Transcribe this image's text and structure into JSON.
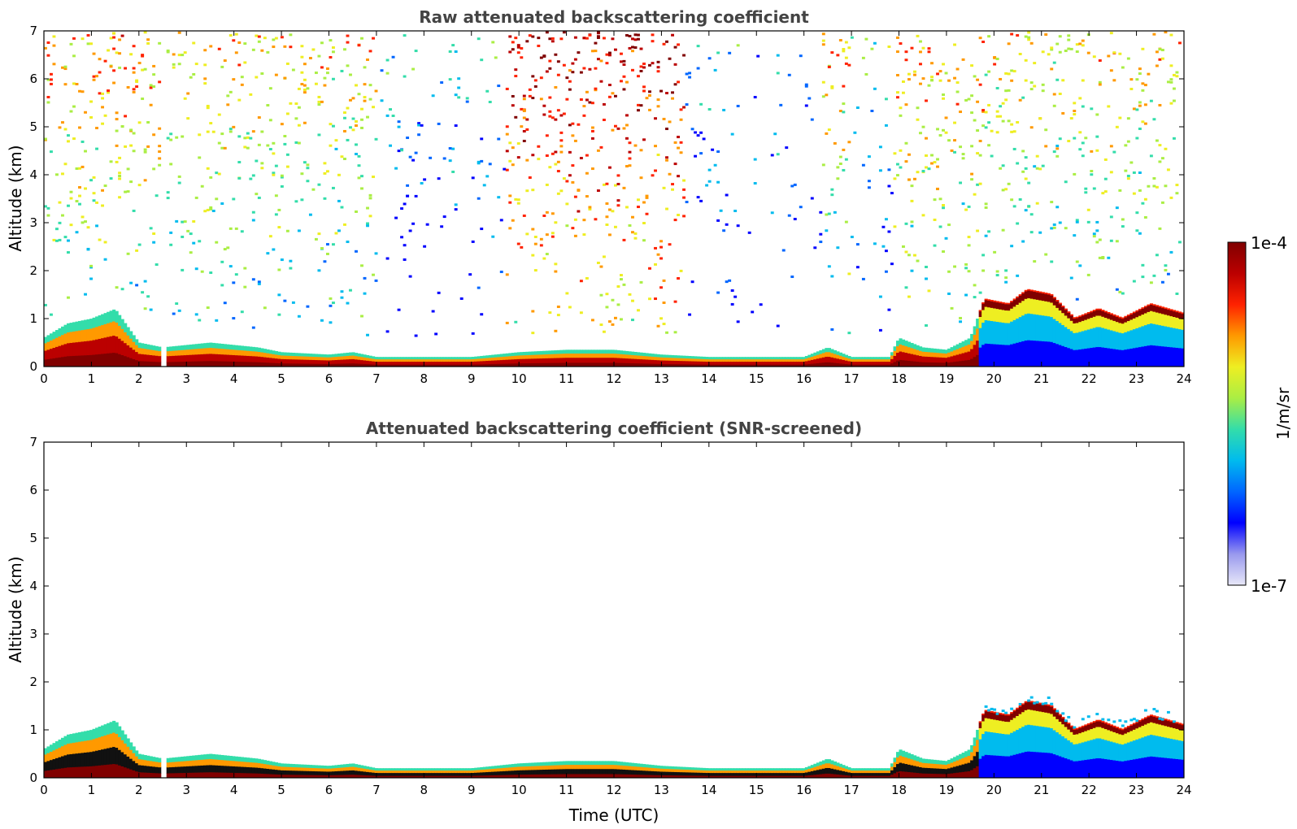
{
  "chart_data": [
    {
      "type": "heatmap",
      "title": "Raw attenuated backscattering coefficient",
      "xlabel": "",
      "ylabel": "Altitude (km)",
      "xlim": [
        0,
        24
      ],
      "ylim": [
        0,
        7
      ],
      "x_ticks": [
        "0",
        "1",
        "2",
        "3",
        "4",
        "5",
        "6",
        "7",
        "8",
        "9",
        "10",
        "11",
        "12",
        "13",
        "14",
        "15",
        "16",
        "17",
        "18",
        "19",
        "20",
        "21",
        "22",
        "23",
        "24"
      ],
      "y_ticks": [
        "0",
        "1",
        "2",
        "3",
        "4",
        "5",
        "6",
        "7"
      ],
      "boundary_layer_top_km": [
        [
          0,
          0.6
        ],
        [
          0.5,
          0.9
        ],
        [
          1,
          1.0
        ],
        [
          1.5,
          1.2
        ],
        [
          2,
          0.5
        ],
        [
          2.5,
          0.4
        ],
        [
          3,
          0.45
        ],
        [
          3.5,
          0.5
        ],
        [
          4,
          0.45
        ],
        [
          4.5,
          0.4
        ],
        [
          5,
          0.3
        ],
        [
          6,
          0.25
        ],
        [
          6.5,
          0.3
        ],
        [
          7,
          0.2
        ],
        [
          8,
          0.2
        ],
        [
          9,
          0.2
        ],
        [
          10,
          0.3
        ],
        [
          11,
          0.35
        ],
        [
          12,
          0.35
        ],
        [
          13,
          0.25
        ],
        [
          14,
          0.2
        ],
        [
          15,
          0.2
        ],
        [
          16,
          0.2
        ],
        [
          16.5,
          0.4
        ],
        [
          17,
          0.2
        ],
        [
          17.8,
          0.2
        ],
        [
          18,
          0.6
        ],
        [
          18.5,
          0.4
        ],
        [
          19,
          0.35
        ],
        [
          19.5,
          0.6
        ],
        [
          19.8,
          1.4
        ],
        [
          20.3,
          1.3
        ],
        [
          20.7,
          1.6
        ],
        [
          21.2,
          1.5
        ],
        [
          21.7,
          1.0
        ],
        [
          22.2,
          1.2
        ],
        [
          22.7,
          1.0
        ],
        [
          23.3,
          1.3
        ],
        [
          24,
          1.1
        ]
      ],
      "upper_signal_segments_h": [
        {
          "x0": 0,
          "x1": 2.45,
          "level": 0.55
        },
        {
          "x0": 2.5,
          "x1": 7.0,
          "level": 0.5
        },
        {
          "x0": 7.0,
          "x1": 9.7,
          "level": 0.25
        },
        {
          "x0": 9.7,
          "x1": 13.5,
          "level": 0.75
        },
        {
          "x0": 13.5,
          "x1": 16.4,
          "level": 0.22
        },
        {
          "x0": 16.4,
          "x1": 17.0,
          "level": 0.55
        },
        {
          "x0": 17.0,
          "x1": 17.9,
          "level": 0.3
        },
        {
          "x0": 17.9,
          "x1": 19.8,
          "level": 0.55
        },
        {
          "x0": 19.8,
          "x1": 24.0,
          "level": 0.5
        }
      ]
    },
    {
      "type": "heatmap",
      "title": "Attenuated backscattering coefficient (SNR-screened)",
      "xlabel": "Time (UTC)",
      "ylabel": "Altitude (km)",
      "xlim": [
        0,
        24
      ],
      "ylim": [
        0,
        7
      ],
      "x_ticks": [
        "0",
        "1",
        "2",
        "3",
        "4",
        "5",
        "6",
        "7",
        "8",
        "9",
        "10",
        "11",
        "12",
        "13",
        "14",
        "15",
        "16",
        "17",
        "18",
        "19",
        "20",
        "21",
        "22",
        "23",
        "24"
      ],
      "y_ticks": [
        "0",
        "1",
        "2",
        "3",
        "4",
        "5",
        "6",
        "7"
      ]
    }
  ],
  "colorbar": {
    "max_label": "1e-4",
    "min_label": "1e-7",
    "unit_label": "1/m/sr",
    "colors": [
      "#e8e8f8",
      "#9999ee",
      "#0000ff",
      "#0066ff",
      "#00bbee",
      "#33ddaa",
      "#aaee44",
      "#eeee22",
      "#ff9900",
      "#ff2200",
      "#bb0000",
      "#800000"
    ]
  }
}
